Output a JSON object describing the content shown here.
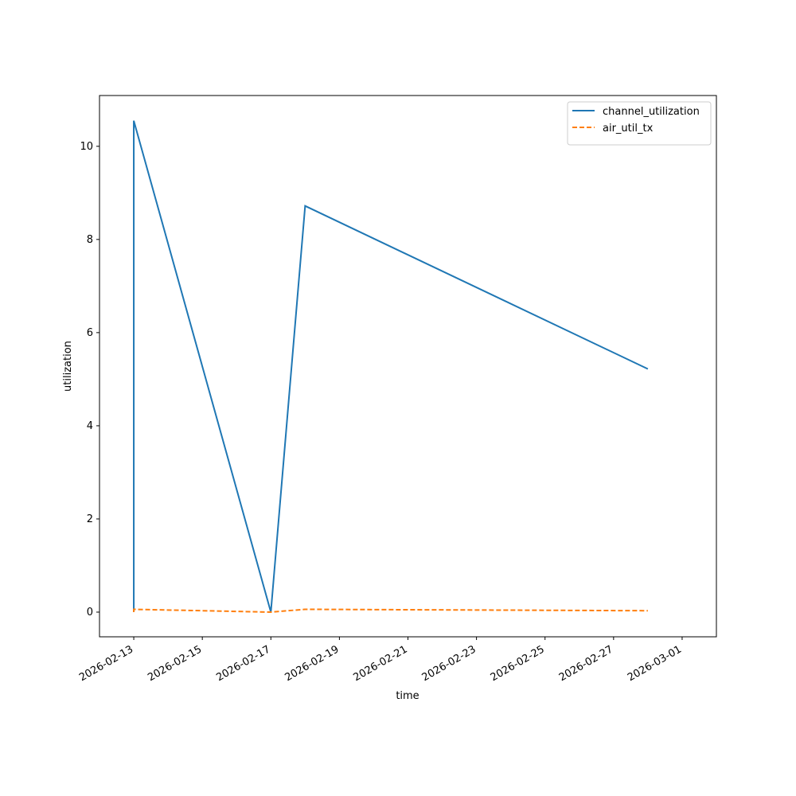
{
  "chart_data": {
    "type": "line",
    "x_label": "time",
    "y_label": "utilization",
    "x": [
      "2026-02-13",
      "2026-02-13",
      "2026-02-17",
      "2026-02-18",
      "2026-02-28"
    ],
    "series": [
      {
        "name": "channel_utilization",
        "color": "#1f77b4",
        "dash": "solid",
        "values": [
          0,
          10.55,
          0,
          8.72,
          5.22
        ]
      },
      {
        "name": "air_util_tx",
        "color": "#ff7f0e",
        "dash": "dashed",
        "values": [
          0,
          0.06,
          0,
          0.06,
          0.03
        ]
      }
    ],
    "xlim": [
      "2026-02-12",
      "2026-03-02"
    ],
    "xticks": [
      "2026-02-13",
      "2026-02-15",
      "2026-02-17",
      "2026-02-19",
      "2026-02-21",
      "2026-02-23",
      "2026-02-25",
      "2026-02-27",
      "2026-03-01"
    ],
    "ylim": [
      -0.53,
      11.09
    ],
    "yticks": [
      0,
      2,
      4,
      6,
      8,
      10
    ],
    "legend": "upper-right"
  }
}
